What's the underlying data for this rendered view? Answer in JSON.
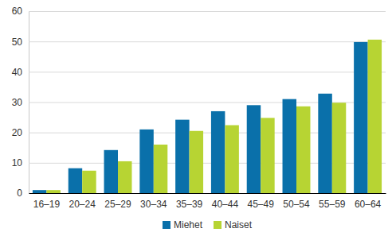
{
  "chart_data": {
    "type": "bar",
    "categories": [
      "16–19",
      "20–24",
      "25–29",
      "30–34",
      "35–39",
      "40–44",
      "45–49",
      "50–54",
      "55–59",
      "60–64"
    ],
    "series": [
      {
        "name": "Miehet",
        "color": "#0a70aa",
        "values": [
          1.0,
          8.2,
          14.2,
          21.0,
          24.2,
          27.0,
          29.0,
          31.0,
          32.8,
          49.8
        ]
      },
      {
        "name": "Naiset",
        "color": "#b7d433",
        "values": [
          1.0,
          7.4,
          10.5,
          16.0,
          20.5,
          22.4,
          24.8,
          28.6,
          29.8,
          50.6
        ]
      }
    ],
    "ylim": [
      0,
      60
    ],
    "yticks": [
      0,
      10,
      20,
      30,
      40,
      50,
      60
    ],
    "grid": true,
    "legend": "bottom"
  }
}
